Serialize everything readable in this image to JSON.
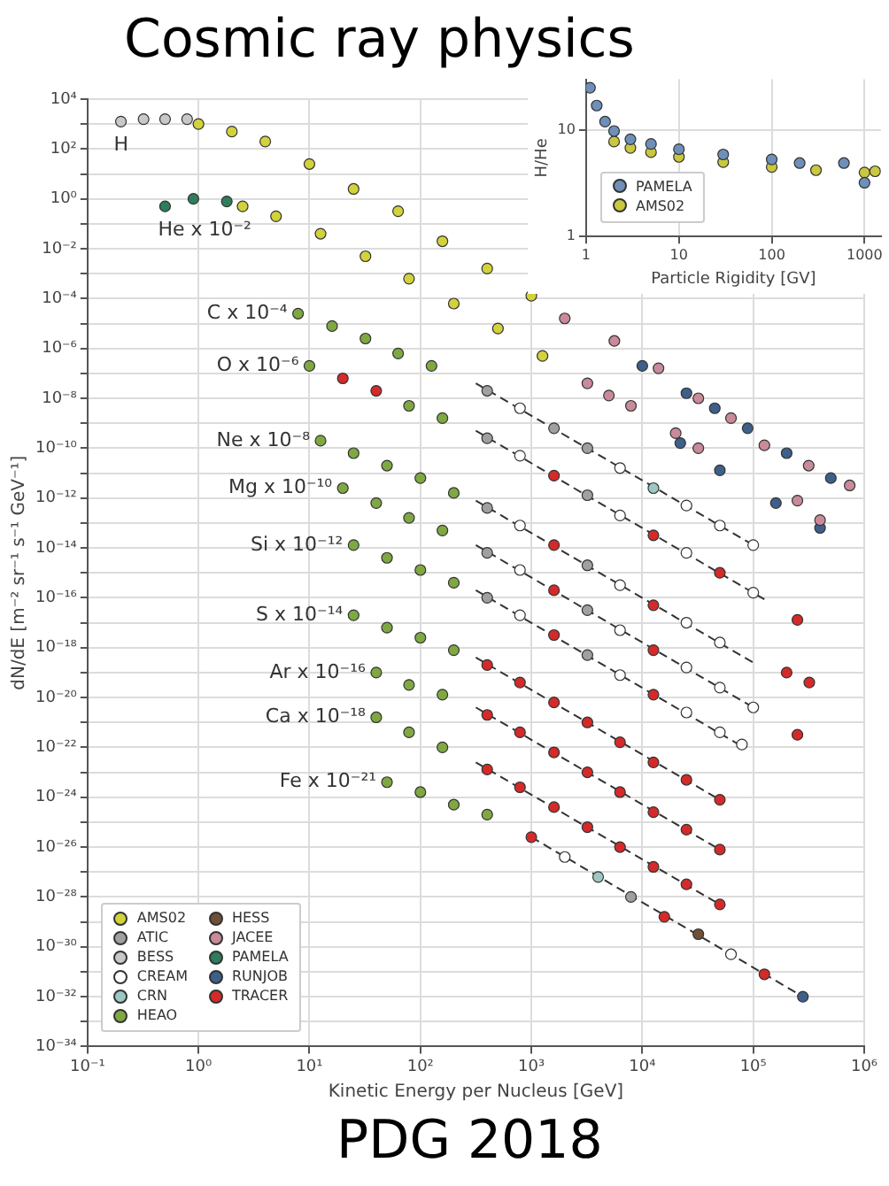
{
  "chart_data": [
    {
      "type": "scatter",
      "xlabel": "Kinetic Energy per Nucleus [GeV]",
      "ylabel": "dN/dE [m⁻² sr⁻¹ s⁻¹ GeV⁻¹]",
      "log": "xy",
      "grid": true,
      "legend": "bottom left",
      "marker": "circle",
      "xlim": [
        0.1,
        1000000
      ],
      "ylim": [
        1e-34,
        10000
      ],
      "xticks": [
        {
          "value": 0.1,
          "label": "10⁻¹"
        },
        {
          "value": 1,
          "label": "10⁰"
        },
        {
          "value": 10,
          "label": "10¹"
        },
        {
          "value": 100,
          "label": "10²"
        },
        {
          "value": 1000,
          "label": "10³"
        },
        {
          "value": 10000,
          "label": "10⁴"
        },
        {
          "value": 100000,
          "label": "10⁵"
        },
        {
          "value": 1000000,
          "label": "10⁶"
        }
      ],
      "yticks": [
        {
          "value": 1e-34,
          "label": "10⁻³⁴"
        },
        {
          "value": 1e-33,
          "label": null
        },
        {
          "value": 1e-32,
          "label": "10⁻³²"
        },
        {
          "value": 1e-31,
          "label": null
        },
        {
          "value": 1e-30,
          "label": "10⁻³⁰"
        },
        {
          "value": 1e-29,
          "label": null
        },
        {
          "value": 1e-28,
          "label": "10⁻²⁸"
        },
        {
          "value": 1e-27,
          "label": null
        },
        {
          "value": 1e-26,
          "label": "10⁻²⁶"
        },
        {
          "value": 1e-25,
          "label": null
        },
        {
          "value": 1e-24,
          "label": "10⁻²⁴"
        },
        {
          "value": 1e-23,
          "label": null
        },
        {
          "value": 1e-22,
          "label": "10⁻²²"
        },
        {
          "value": 1e-21,
          "label": null
        },
        {
          "value": 1e-20,
          "label": "10⁻²⁰"
        },
        {
          "value": 1e-19,
          "label": null
        },
        {
          "value": 1e-18,
          "label": "10⁻¹⁸"
        },
        {
          "value": 1e-17,
          "label": null
        },
        {
          "value": 1e-16,
          "label": "10⁻¹⁶"
        },
        {
          "value": 1e-15,
          "label": null
        },
        {
          "value": 1e-14,
          "label": "10⁻¹⁴"
        },
        {
          "value": 1e-13,
          "label": null
        },
        {
          "value": 1e-12,
          "label": "10⁻¹²"
        },
        {
          "value": 1e-11,
          "label": null
        },
        {
          "value": 1e-10,
          "label": "10⁻¹⁰"
        },
        {
          "value": 1e-09,
          "label": null
        },
        {
          "value": 1e-08,
          "label": "10⁻⁸"
        },
        {
          "value": 1e-07,
          "label": null
        },
        {
          "value": 1e-06,
          "label": "10⁻⁶"
        },
        {
          "value": 1e-05,
          "label": null
        },
        {
          "value": 0.0001,
          "label": "10⁻⁴"
        },
        {
          "value": 0.001,
          "label": null
        },
        {
          "value": 0.01,
          "label": "10⁻²"
        },
        {
          "value": 0.1,
          "label": null
        },
        {
          "value": 1,
          "label": "10⁰"
        },
        {
          "value": 10,
          "label": null
        },
        {
          "value": 100,
          "label": "10²"
        },
        {
          "value": 1000,
          "label": null
        },
        {
          "value": 10000,
          "label": "10⁴"
        }
      ],
      "annotations": [
        "Cosmic ray physics",
        "PDG 2018",
        {
          "text": "H",
          "x": 0.2,
          "y": 1260
        },
        {
          "text": "He x 10⁻²",
          "x": 0.5,
          "y": 0.5
        },
        {
          "text": "C x 10⁻⁴",
          "x": 7.9,
          "y": 2.5e-05
        },
        {
          "text": "O x 10⁻⁶",
          "x": 10,
          "y": 2e-07
        },
        {
          "text": "Ne x 10⁻⁸",
          "x": 12.6,
          "y": 2e-10
        },
        {
          "text": "Mg x 10⁻¹⁰",
          "x": 20,
          "y": 2.5e-12
        },
        {
          "text": "Si x 10⁻¹²",
          "x": 25,
          "y": 1.3e-14
        },
        {
          "text": "S x 10⁻¹⁴",
          "x": 25,
          "y": 2e-17
        },
        {
          "text": "Ar x 10⁻¹⁶",
          "x": 40,
          "y": 1e-19
        },
        {
          "text": "Ca x 10⁻¹⁸",
          "x": 40,
          "y": 1.6e-21
        },
        {
          "text": "Fe x 10⁻²¹",
          "x": 50,
          "y": 4e-24
        }
      ],
      "series": [
        {
          "name": "AMS02",
          "color": "#d2d23c",
          "x": [
            1,
            2,
            4,
            10,
            25,
            63,
            158,
            400,
            1000,
            2.5,
            5,
            12.6,
            32,
            79,
            200,
            500,
            1260
          ],
          "values": [
            1000,
            500,
            200,
            25,
            2.5,
            0.32,
            0.02,
            0.0016,
            0.00013,
            0.5,
            0.2,
            0.04,
            0.005,
            0.00063,
            6.3e-05,
            6.3e-06,
            5e-07
          ]
        },
        {
          "name": "ATIC",
          "color": "#a0a0a0",
          "x": [
            400,
            1600,
            3200,
            400,
            3200,
            400,
            3200,
            400,
            3200,
            400,
            3200,
            7900
          ],
          "values": [
            2e-08,
            6.3e-10,
            1e-10,
            2.5e-10,
            1.3e-12,
            4e-13,
            2e-15,
            6.3e-15,
            3.2e-17,
            1e-16,
            5e-19,
            1e-28
          ]
        },
        {
          "name": "BESS",
          "color": "#c8c8c8",
          "x": [
            0.2,
            0.32,
            0.5,
            0.79
          ],
          "values": [
            1260,
            1580,
            1580,
            1580
          ]
        },
        {
          "name": "CREAM",
          "color": "#ffffff",
          "x": [
            790,
            6300,
            25000,
            50000,
            100000,
            790,
            6300,
            25000,
            100000,
            790,
            6300,
            25000,
            50000,
            790,
            6300,
            25000,
            50000,
            100000,
            790,
            6300,
            25000,
            50000,
            79000,
            2000,
            63000
          ],
          "values": [
            4e-09,
            1.6e-11,
            5e-13,
            7.9e-14,
            1.3e-14,
            5e-11,
            2e-13,
            6.3e-15,
            1.6e-16,
            7.9e-14,
            3.2e-16,
            1e-17,
            1.6e-18,
            1.3e-15,
            5e-18,
            1.6e-19,
            2.5e-20,
            4e-21,
            2e-17,
            7.9e-20,
            2.5e-21,
            4e-22,
            1.3e-22,
            4e-27,
            5e-31
          ]
        },
        {
          "name": "CRN",
          "color": "#9cc7c4",
          "x": [
            12600,
            4000
          ],
          "values": [
            2.5e-12,
            6.3e-28
          ]
        },
        {
          "name": "HEAO",
          "color": "#7fa843",
          "x": [
            7.9,
            16,
            32,
            63,
            126,
            10,
            79,
            158,
            12.6,
            25,
            50,
            100,
            200,
            20,
            40,
            79,
            158,
            25,
            50,
            100,
            200,
            25,
            50,
            100,
            200,
            40,
            79,
            158,
            40,
            79,
            158,
            50,
            100,
            200,
            400
          ],
          "values": [
            2.5e-05,
            7.9e-06,
            2.5e-06,
            6.3e-07,
            2e-07,
            2e-07,
            5e-09,
            1.6e-09,
            2e-10,
            6.3e-11,
            2e-11,
            6.3e-12,
            1.6e-12,
            2.5e-12,
            6.3e-13,
            1.6e-13,
            5e-14,
            1.3e-14,
            4e-15,
            1.3e-15,
            4e-16,
            2e-17,
            6.3e-18,
            2.5e-18,
            7.9e-19,
            1e-19,
            3.2e-20,
            1.3e-20,
            1.6e-21,
            4e-22,
            1e-22,
            4e-24,
            1.6e-24,
            5e-25,
            2e-25
          ]
        },
        {
          "name": "HESS",
          "color": "#6e5038",
          "x": [
            32000
          ],
          "values": [
            3.2e-30
          ]
        },
        {
          "name": "JACEE",
          "color": "#c98a9a",
          "x": [
            2000,
            5600,
            14000,
            32000,
            63000,
            126000,
            316000,
            740000,
            3200,
            5000,
            7900,
            20000,
            32000,
            250000,
            400000
          ],
          "values": [
            1.6e-05,
            2e-06,
            1.6e-07,
            1e-08,
            1.6e-09,
            1.3e-10,
            2e-11,
            3.2e-12,
            4e-08,
            1.3e-08,
            5e-09,
            4e-10,
            1e-10,
            7.9e-13,
            1.3e-13
          ]
        },
        {
          "name": "PAMELA",
          "color": "#2e7d5b",
          "x": [
            0.5,
            0.9,
            1.8
          ],
          "values": [
            0.5,
            1,
            0.79
          ]
        },
        {
          "name": "RUNJOB",
          "color": "#3e5f8a",
          "x": [
            10000,
            25000,
            45000,
            89000,
            200000,
            500000,
            22000,
            50000,
            160000,
            400000,
            280000
          ],
          "values": [
            2e-07,
            1.6e-08,
            4e-09,
            6.3e-10,
            6.3e-11,
            6.3e-12,
            1.6e-10,
            1.3e-11,
            6.3e-13,
            6.3e-14,
            1e-32
          ]
        },
        {
          "name": "TRACER",
          "color": "#d42a2a",
          "x": [
            20,
            40,
            1600,
            12600,
            50000,
            250000,
            1600,
            12600,
            200000,
            320000,
            1600,
            12600,
            250000,
            1600,
            12600,
            400,
            790,
            1600,
            3200,
            6300,
            12600,
            25000,
            50000,
            400,
            790,
            1600,
            3200,
            6300,
            12600,
            25000,
            50000,
            400,
            790,
            1600,
            3200,
            6300,
            12600,
            25000,
            50000,
            1000,
            15800,
            126000
          ],
          "values": [
            6.3e-08,
            2e-08,
            7.9e-12,
            3.2e-14,
            1e-15,
            1.3e-17,
            1.3e-14,
            5e-17,
            1e-19,
            4e-20,
            2e-16,
            7.9e-19,
            3.2e-22,
            3.2e-18,
            1.3e-20,
            2e-19,
            4e-20,
            6.3e-21,
            1e-21,
            1.6e-22,
            2.5e-23,
            5e-24,
            7.9e-25,
            2e-21,
            4e-22,
            6.3e-23,
            1e-23,
            1.6e-24,
            2.5e-25,
            5e-26,
            7.9e-27,
            1.3e-23,
            2.5e-24,
            4e-25,
            6.3e-26,
            1e-26,
            1.6e-27,
            3.2e-28,
            5e-29,
            2.5e-26,
            1.6e-29,
            7.9e-32
          ]
        },
        {
          "type": "line",
          "marker": "none",
          "line_style": "dashed",
          "color": "#333333",
          "x": [
            316,
            100000
          ],
          "values": [
            4e-08,
            1.3e-14
          ]
        },
        {
          "type": "line",
          "marker": "none",
          "line_style": "dashed",
          "color": "#333333",
          "x": [
            316,
            126000
          ],
          "values": [
            5e-10,
            8.7e-17
          ]
        },
        {
          "type": "line",
          "marker": "none",
          "line_style": "dashed",
          "color": "#333333",
          "x": [
            316,
            100000
          ],
          "values": [
            7.9e-13,
            2.5e-19
          ]
        },
        {
          "type": "line",
          "marker": "none",
          "line_style": "dashed",
          "color": "#333333",
          "x": [
            316,
            100000
          ],
          "values": [
            1.3e-14,
            4e-21
          ]
        },
        {
          "type": "line",
          "marker": "none",
          "line_style": "dashed",
          "color": "#333333",
          "x": [
            316,
            79000
          ],
          "values": [
            2e-16,
            1.1e-22
          ]
        },
        {
          "type": "line",
          "marker": "none",
          "line_style": "dashed",
          "color": "#333333",
          "x": [
            316,
            50000
          ],
          "values": [
            4e-19,
            7.9e-25
          ]
        },
        {
          "type": "line",
          "marker": "none",
          "line_style": "dashed",
          "color": "#333333",
          "x": [
            316,
            50000
          ],
          "values": [
            4e-21,
            7.9e-27
          ]
        },
        {
          "type": "line",
          "marker": "none",
          "line_style": "dashed",
          "color": "#333333",
          "x": [
            316,
            50000
          ],
          "values": [
            2.5e-23,
            5e-29
          ]
        },
        {
          "type": "line",
          "marker": "none",
          "line_style": "dashed",
          "color": "#333333",
          "x": [
            1000,
            280000
          ],
          "values": [
            2.5e-26,
            1e-32
          ]
        }
      ]
    },
    {
      "type": "scatter",
      "xlabel": "Particle Rigidity [GV]",
      "ylabel": "H/He",
      "log": "xy",
      "grid": true,
      "legend": "bottom left",
      "marker": "circle",
      "xlim": [
        1,
        1500
      ],
      "ylim": [
        1,
        30
      ],
      "xticks": [
        1,
        10,
        100,
        1000
      ],
      "yticks": [
        1,
        10
      ],
      "series": [
        {
          "name": "PAMELA",
          "color": "#6d8fb8",
          "x": [
            1.1,
            1.3,
            1.6,
            2,
            3,
            5,
            10,
            30,
            100,
            200,
            600,
            1000
          ],
          "values": [
            25,
            17,
            12,
            9.8,
            8.2,
            7.4,
            6.6,
            5.9,
            5.3,
            4.9,
            4.9,
            3.2
          ]
        },
        {
          "name": "AMS02",
          "color": "#c9c83e",
          "x": [
            2,
            3,
            5,
            10,
            30,
            100,
            300,
            1000,
            1300
          ],
          "values": [
            7.8,
            6.8,
            6.2,
            5.6,
            5.0,
            4.5,
            4.2,
            4.0,
            4.1
          ]
        }
      ]
    }
  ]
}
